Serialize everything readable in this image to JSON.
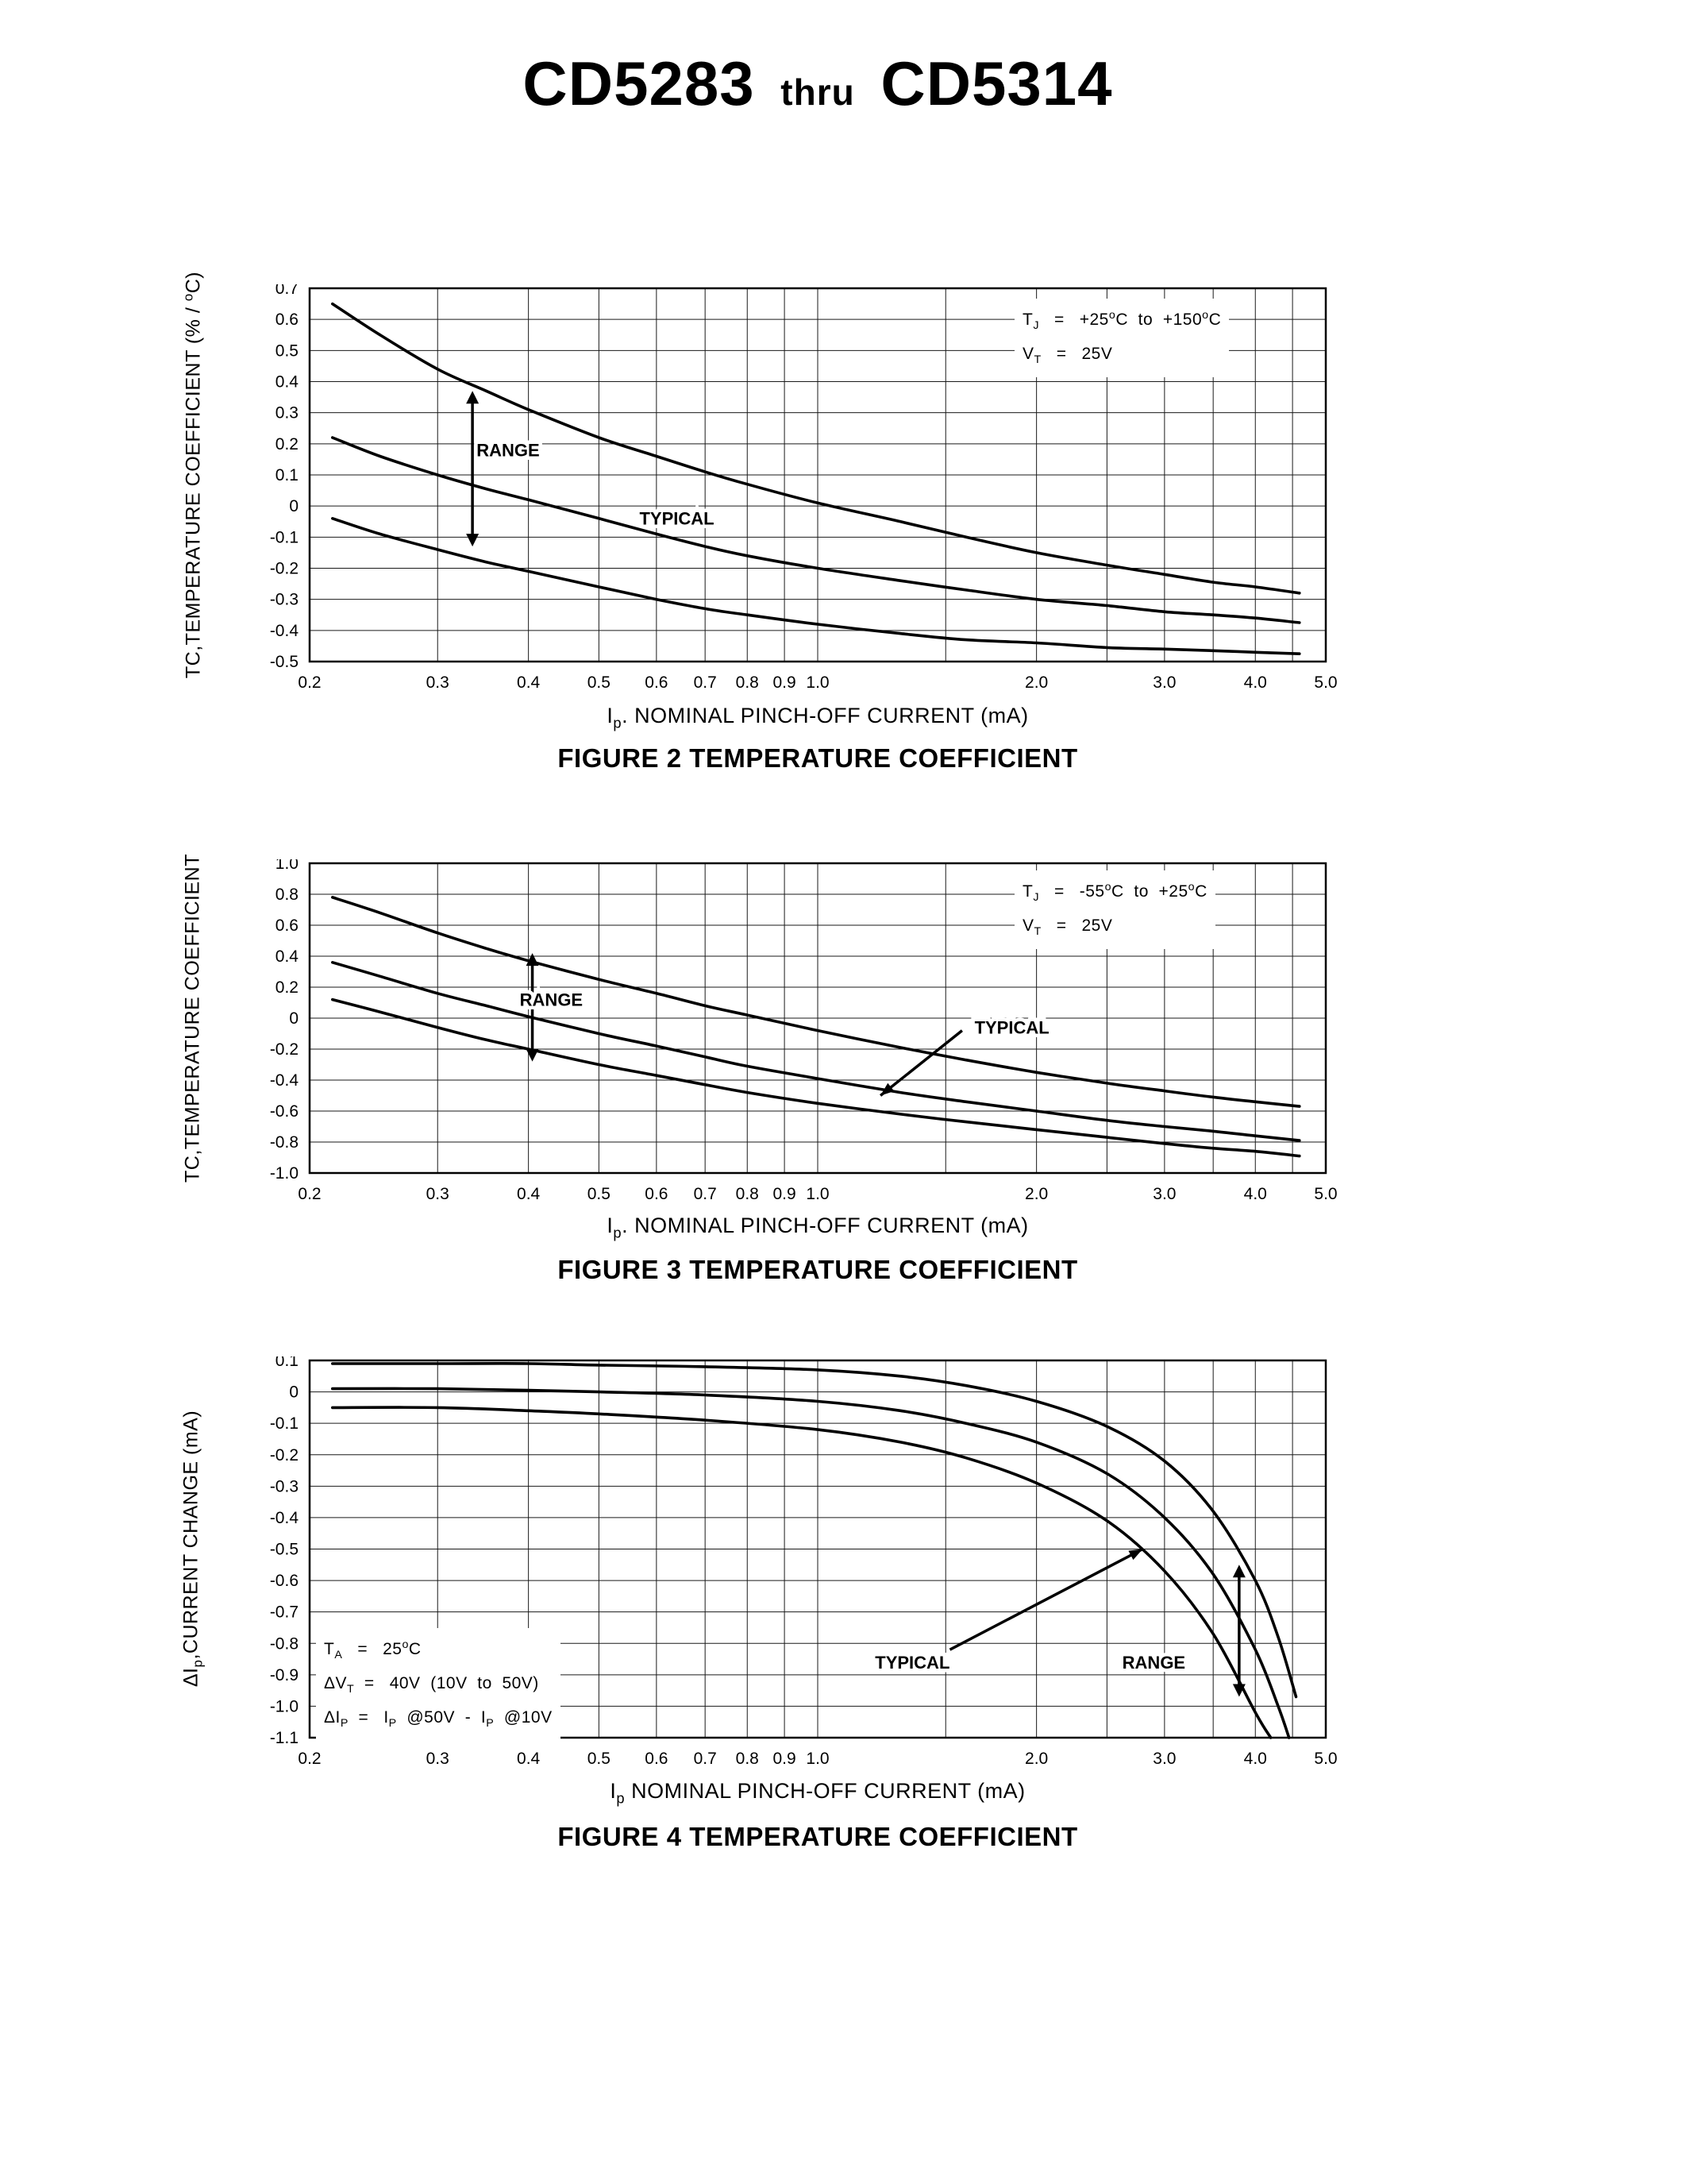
{
  "page": {
    "title": {
      "part1": "CD5283",
      "thru": "thru",
      "part2": "CD5314"
    }
  },
  "chart_data": [
    {
      "id": "figure2",
      "type": "line",
      "x_scale": "log",
      "xlim": [
        0.2,
        5.0
      ],
      "ylim": [
        -0.5,
        0.7
      ],
      "grid": true,
      "title": "FIGURE 2 TEMPERATURE COEFFICIENT",
      "caption": "FIGURE 2 TEMPERATURE COEFFICIENT",
      "ylabel": "TC,TEMPERATURE COEFFICIENT (% / ^{o}C)",
      "xlabel": "I_{p}. NOMINAL PINCH-OFF CURRENT (mA)",
      "y_ticks": [
        "0.7",
        "0.6",
        "0.5",
        "0.4",
        "0.3",
        "0.2",
        "0.1",
        "0",
        "-0.1",
        "-0.2",
        "-0.3",
        "-0.4",
        "-0.5"
      ],
      "x_ticks": [
        "0.2",
        "0.3",
        "0.4",
        "0.5",
        "0.6",
        "0.7",
        "0.8",
        "0.9",
        "1.0",
        "2.0",
        "3.0",
        "4.0",
        "5.0"
      ],
      "x_grid": [
        0.2,
        0.3,
        0.4,
        0.5,
        0.6,
        0.7,
        0.8,
        0.9,
        1.0,
        1.5,
        2.0,
        2.5,
        3.0,
        3.5,
        4.0,
        4.5,
        5.0
      ],
      "conditions": [
        "T_{J}   =   +25^{o}C  to  +150^{o}C",
        "V_{T}   =   25V"
      ],
      "series": [
        {
          "name": "range-upper",
          "points": [
            [
              0.215,
              0.65
            ],
            [
              0.25,
              0.55
            ],
            [
              0.3,
              0.44
            ],
            [
              0.35,
              0.37
            ],
            [
              0.4,
              0.31
            ],
            [
              0.5,
              0.22
            ],
            [
              0.6,
              0.16
            ],
            [
              0.7,
              0.11
            ],
            [
              0.8,
              0.07
            ],
            [
              1.0,
              0.01
            ],
            [
              1.3,
              -0.05
            ],
            [
              1.6,
              -0.1
            ],
            [
              2.0,
              -0.15
            ],
            [
              2.5,
              -0.19
            ],
            [
              3.0,
              -0.22
            ],
            [
              3.5,
              -0.245
            ],
            [
              4.0,
              -0.26
            ],
            [
              4.6,
              -0.28
            ]
          ]
        },
        {
          "name": "typical",
          "points": [
            [
              0.215,
              0.22
            ],
            [
              0.25,
              0.16
            ],
            [
              0.3,
              0.1
            ],
            [
              0.35,
              0.055
            ],
            [
              0.4,
              0.02
            ],
            [
              0.5,
              -0.04
            ],
            [
              0.6,
              -0.09
            ],
            [
              0.7,
              -0.13
            ],
            [
              0.8,
              -0.16
            ],
            [
              1.0,
              -0.2
            ],
            [
              1.3,
              -0.24
            ],
            [
              1.6,
              -0.27
            ],
            [
              2.0,
              -0.3
            ],
            [
              2.5,
              -0.32
            ],
            [
              3.0,
              -0.34
            ],
            [
              3.5,
              -0.35
            ],
            [
              4.0,
              -0.36
            ],
            [
              4.6,
              -0.375
            ]
          ]
        },
        {
          "name": "range-lower",
          "points": [
            [
              0.215,
              -0.04
            ],
            [
              0.25,
              -0.09
            ],
            [
              0.3,
              -0.14
            ],
            [
              0.35,
              -0.18
            ],
            [
              0.4,
              -0.21
            ],
            [
              0.5,
              -0.26
            ],
            [
              0.6,
              -0.3
            ],
            [
              0.7,
              -0.33
            ],
            [
              0.8,
              -0.35
            ],
            [
              1.0,
              -0.38
            ],
            [
              1.3,
              -0.41
            ],
            [
              1.6,
              -0.43
            ],
            [
              2.0,
              -0.44
            ],
            [
              2.5,
              -0.455
            ],
            [
              3.0,
              -0.46
            ],
            [
              3.5,
              -0.465
            ],
            [
              4.0,
              -0.47
            ],
            [
              4.6,
              -0.475
            ]
          ]
        }
      ],
      "annotations": [
        {
          "kind": "varrow",
          "x": 0.335,
          "y1": 0.37,
          "y2": -0.13
        },
        {
          "kind": "label",
          "text": "RANGE",
          "x": 0.375,
          "y": 0.16
        },
        {
          "kind": "label",
          "text": "TYPICAL",
          "x": 0.64,
          "y": -0.06
        }
      ]
    },
    {
      "id": "figure3",
      "type": "line",
      "x_scale": "log",
      "xlim": [
        0.2,
        5.0
      ],
      "ylim": [
        -1.0,
        1.0
      ],
      "grid": true,
      "title": "FIGURE 3 TEMPERATURE COEFFICIENT",
      "caption": "FIGURE 3 TEMPERATURE COEFFICIENT",
      "ylabel": "TC,TEMPERATURE COEFFICIENT",
      "xlabel": "I_{p}. NOMINAL PINCH-OFF CURRENT (mA)",
      "y_ticks": [
        "1.0",
        "0.8",
        "0.6",
        "0.4",
        "0.2",
        "0",
        "-0.2",
        "-0.4",
        "-0.6",
        "-0.8",
        "-1.0"
      ],
      "x_ticks": [
        "0.2",
        "0.3",
        "0.4",
        "0.5",
        "0.6",
        "0.7",
        "0.8",
        "0.9",
        "1.0",
        "2.0",
        "3.0",
        "4.0",
        "5.0"
      ],
      "x_grid": [
        0.2,
        0.3,
        0.4,
        0.5,
        0.6,
        0.7,
        0.8,
        0.9,
        1.0,
        1.5,
        2.0,
        2.5,
        3.0,
        3.5,
        4.0,
        4.5,
        5.0
      ],
      "conditions": [
        "T_{J}   =   -55^{o}C  to  +25^{o}C",
        "V_{T}   =   25V"
      ],
      "series": [
        {
          "name": "range-upper",
          "points": [
            [
              0.215,
              0.78
            ],
            [
              0.25,
              0.68
            ],
            [
              0.3,
              0.55
            ],
            [
              0.35,
              0.45
            ],
            [
              0.4,
              0.37
            ],
            [
              0.5,
              0.25
            ],
            [
              0.6,
              0.16
            ],
            [
              0.7,
              0.08
            ],
            [
              0.8,
              0.02
            ],
            [
              1.0,
              -0.08
            ],
            [
              1.3,
              -0.19
            ],
            [
              1.6,
              -0.27
            ],
            [
              2.0,
              -0.35
            ],
            [
              2.5,
              -0.42
            ],
            [
              3.0,
              -0.47
            ],
            [
              3.5,
              -0.51
            ],
            [
              4.0,
              -0.54
            ],
            [
              4.6,
              -0.57
            ]
          ]
        },
        {
          "name": "typical",
          "points": [
            [
              0.215,
              0.36
            ],
            [
              0.25,
              0.27
            ],
            [
              0.3,
              0.16
            ],
            [
              0.35,
              0.08
            ],
            [
              0.4,
              0.01
            ],
            [
              0.5,
              -0.1
            ],
            [
              0.6,
              -0.18
            ],
            [
              0.7,
              -0.25
            ],
            [
              0.8,
              -0.31
            ],
            [
              1.0,
              -0.39
            ],
            [
              1.3,
              -0.48
            ],
            [
              1.6,
              -0.54
            ],
            [
              2.0,
              -0.6
            ],
            [
              2.5,
              -0.66
            ],
            [
              3.0,
              -0.7
            ],
            [
              3.5,
              -0.73
            ],
            [
              4.0,
              -0.76
            ],
            [
              4.6,
              -0.79
            ]
          ]
        },
        {
          "name": "range-lower",
          "points": [
            [
              0.215,
              0.12
            ],
            [
              0.25,
              0.04
            ],
            [
              0.3,
              -0.06
            ],
            [
              0.35,
              -0.14
            ],
            [
              0.4,
              -0.2
            ],
            [
              0.5,
              -0.3
            ],
            [
              0.6,
              -0.37
            ],
            [
              0.7,
              -0.43
            ],
            [
              0.8,
              -0.48
            ],
            [
              1.0,
              -0.55
            ],
            [
              1.3,
              -0.62
            ],
            [
              1.6,
              -0.67
            ],
            [
              2.0,
              -0.72
            ],
            [
              2.5,
              -0.77
            ],
            [
              3.0,
              -0.81
            ],
            [
              3.5,
              -0.84
            ],
            [
              4.0,
              -0.86
            ],
            [
              4.6,
              -0.89
            ]
          ]
        }
      ],
      "annotations": [
        {
          "kind": "varrow",
          "x": 0.405,
          "y1": 0.42,
          "y2": -0.28
        },
        {
          "kind": "label",
          "text": "RANGE",
          "x": 0.43,
          "y": 0.08
        },
        {
          "kind": "leader",
          "x1": 1.58,
          "y1": -0.08,
          "x2": 1.22,
          "y2": -0.5
        },
        {
          "kind": "label",
          "text": "TYPICAL",
          "x": 1.85,
          "y": -0.1
        }
      ]
    },
    {
      "id": "figure4",
      "type": "line",
      "x_scale": "log",
      "xlim": [
        0.2,
        5.0
      ],
      "ylim": [
        -1.1,
        0.1
      ],
      "grid": true,
      "title": "FIGURE 4 TEMPERATURE COEFFICIENT",
      "caption": "FIGURE 4 TEMPERATURE COEFFICIENT",
      "ylabel": "ΔI_{p},CURRENT CHANGE (mA)",
      "xlabel": "I_{p} NOMINAL PINCH-OFF CURRENT (mA)",
      "y_ticks": [
        "0.1",
        "0",
        "-0.1",
        "-0.2",
        "-0.3",
        "-0.4",
        "-0.5",
        "-0.6",
        "-0.7",
        "-0.8",
        "-0.9",
        "-1.0",
        "-1.1"
      ],
      "x_ticks": [
        "0.2",
        "0.3",
        "0.4",
        "0.5",
        "0.6",
        "0.7",
        "0.8",
        "0.9",
        "1.0",
        "2.0",
        "3.0",
        "4.0",
        "5.0"
      ],
      "x_grid": [
        0.2,
        0.3,
        0.4,
        0.5,
        0.6,
        0.7,
        0.8,
        0.9,
        1.0,
        1.5,
        2.0,
        2.5,
        3.0,
        3.5,
        4.0,
        4.5,
        5.0
      ],
      "conditions": [
        "T_{A}   =   25^{o}C",
        "ΔV_{T}  =   40V  (10V  to  50V)",
        "ΔI_{P}  =   I_{P}  @50V  -  I_{P}  @10V"
      ],
      "series": [
        {
          "name": "range-upper",
          "points": [
            [
              0.215,
              0.09
            ],
            [
              0.3,
              0.09
            ],
            [
              0.4,
              0.09
            ],
            [
              0.5,
              0.085
            ],
            [
              0.7,
              0.08
            ],
            [
              1.0,
              0.07
            ],
            [
              1.3,
              0.05
            ],
            [
              1.6,
              0.02
            ],
            [
              2.0,
              -0.03
            ],
            [
              2.5,
              -0.11
            ],
            [
              3.0,
              -0.22
            ],
            [
              3.5,
              -0.38
            ],
            [
              4.0,
              -0.6
            ],
            [
              4.3,
              -0.78
            ],
            [
              4.55,
              -0.97
            ]
          ]
        },
        {
          "name": "typical",
          "points": [
            [
              0.215,
              0.01
            ],
            [
              0.3,
              0.01
            ],
            [
              0.4,
              0.005
            ],
            [
              0.5,
              0.0
            ],
            [
              0.7,
              -0.01
            ],
            [
              1.0,
              -0.03
            ],
            [
              1.3,
              -0.06
            ],
            [
              1.6,
              -0.1
            ],
            [
              2.0,
              -0.16
            ],
            [
              2.5,
              -0.26
            ],
            [
              3.0,
              -0.4
            ],
            [
              3.5,
              -0.58
            ],
            [
              4.0,
              -0.82
            ],
            [
              4.3,
              -1.0
            ],
            [
              4.45,
              -1.1
            ]
          ]
        },
        {
          "name": "range-lower",
          "points": [
            [
              0.215,
              -0.05
            ],
            [
              0.3,
              -0.05
            ],
            [
              0.4,
              -0.06
            ],
            [
              0.5,
              -0.07
            ],
            [
              0.7,
              -0.09
            ],
            [
              1.0,
              -0.12
            ],
            [
              1.3,
              -0.16
            ],
            [
              1.6,
              -0.21
            ],
            [
              2.0,
              -0.29
            ],
            [
              2.5,
              -0.41
            ],
            [
              3.0,
              -0.57
            ],
            [
              3.5,
              -0.77
            ],
            [
              4.0,
              -1.02
            ],
            [
              4.2,
              -1.1
            ]
          ]
        }
      ],
      "annotations": [
        {
          "kind": "label",
          "text": "TYPICAL",
          "x": 1.35,
          "y": -0.88
        },
        {
          "kind": "leader",
          "x1": 1.52,
          "y1": -0.82,
          "x2": 2.8,
          "y2": -0.5
        },
        {
          "kind": "label",
          "text": "RANGE",
          "x": 2.9,
          "y": -0.88
        },
        {
          "kind": "varrow",
          "x": 3.8,
          "y1": -0.55,
          "y2": -0.97
        }
      ]
    }
  ]
}
